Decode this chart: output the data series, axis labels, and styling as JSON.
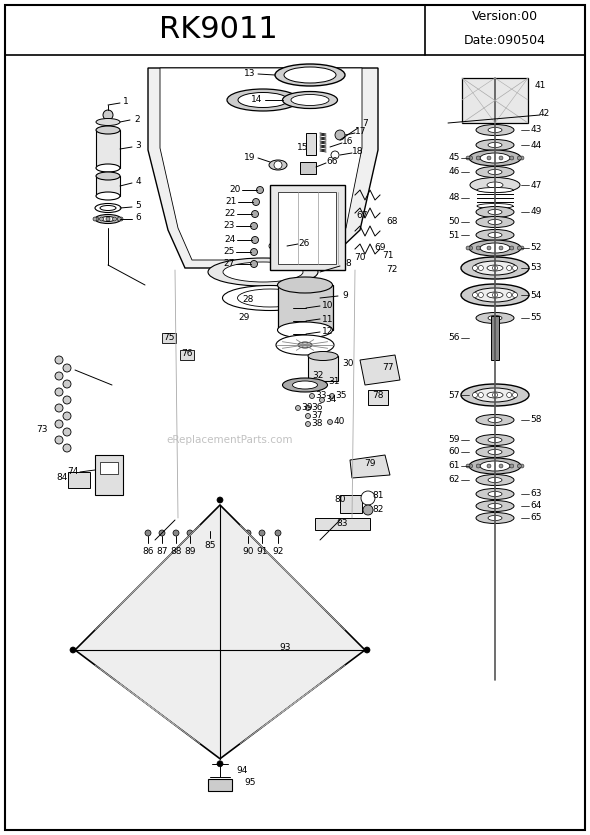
{
  "title": "RK9011",
  "version_text": "Version:00",
  "date_text": "Date:090504",
  "watermark": "eReplacementParts.com",
  "bg_color": "#ffffff",
  "figsize": [
    5.9,
    8.35
  ],
  "dpi": 100
}
